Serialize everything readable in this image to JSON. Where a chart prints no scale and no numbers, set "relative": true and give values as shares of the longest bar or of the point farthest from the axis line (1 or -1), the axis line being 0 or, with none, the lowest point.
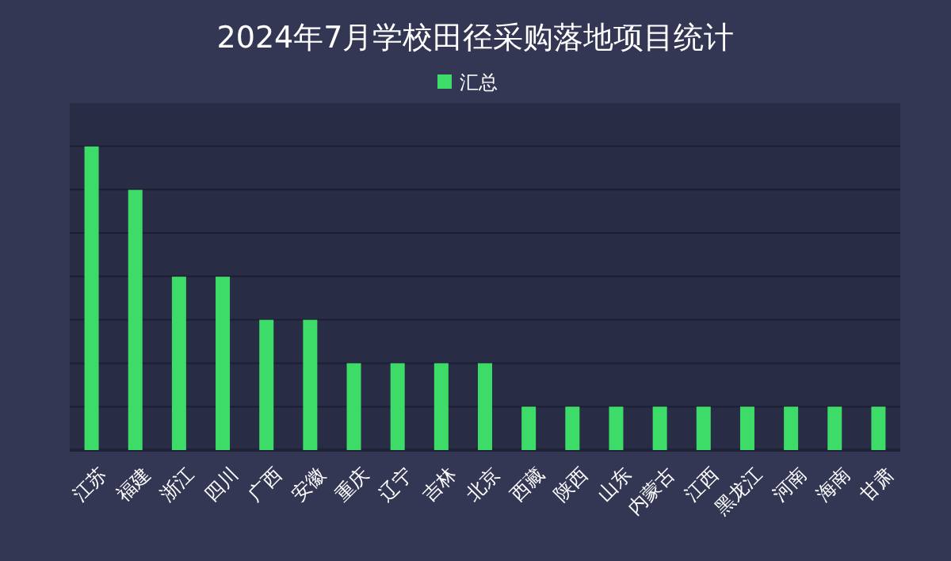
{
  "chart_data": {
    "type": "bar",
    "title": "2024年7月学校田径采购落地项目统计",
    "categories": [
      "江苏",
      "福建",
      "浙江",
      "四川",
      "广西",
      "安徽",
      "重庆",
      "辽宁",
      "吉林",
      "北京",
      "西藏",
      "陕西",
      "山东",
      "内蒙古",
      "江西",
      "黑龙江",
      "河南",
      "海南",
      "甘肃"
    ],
    "series": [
      {
        "name": "汇总",
        "color": "#3ddc68",
        "values": [
          1,
          0.857,
          0.571,
          0.571,
          0.429,
          0.429,
          0.286,
          0.286,
          0.286,
          0.286,
          0.143,
          0.143,
          0.143,
          0.143,
          0.143,
          0.143,
          0.143,
          0.143,
          0.143
        ]
      }
    ],
    "relative": true,
    "grid": "y",
    "legend": "top"
  }
}
